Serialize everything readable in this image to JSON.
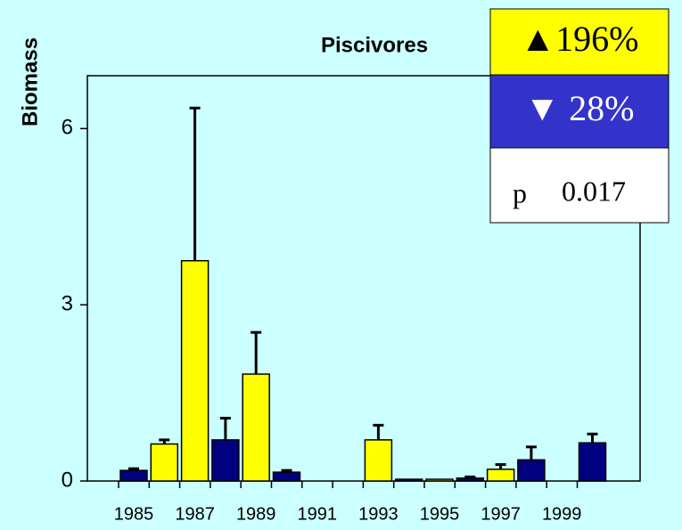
{
  "chart_data": {
    "type": "bar",
    "title": "Piscivores",
    "y_label": "Biomass",
    "categories": [
      "1985",
      null,
      "1987",
      null,
      "1989",
      null,
      "1991",
      null,
      "1993",
      null,
      "1995",
      null,
      "1997",
      null,
      "1999",
      null
    ],
    "values": [
      0.18,
      0.63,
      3.75,
      0.7,
      1.82,
      0.15,
      0,
      0,
      0.7,
      0.03,
      0.03,
      0.05,
      0.2,
      0.36,
      0,
      0.65
    ],
    "errors": [
      0.03,
      0.07,
      2.6,
      0.37,
      0.71,
      0.03,
      null,
      null,
      0.25,
      null,
      null,
      0.02,
      0.08,
      0.22,
      null,
      0.15
    ],
    "colors": [
      "#000080",
      "#ffff00",
      "#ffff00",
      "#000080",
      "#ffff00",
      "#000080",
      "#ffff00",
      "#000080",
      "#ffff00",
      "#000080",
      "#ffff00",
      "#000080",
      "#ffff00",
      "#000080",
      "#ffff00",
      "#000080"
    ],
    "ylim": [
      0,
      6.9
    ],
    "yticks": [
      0,
      3,
      6
    ],
    "annotations": {
      "increase": "▲196%",
      "decrease": "▼ 28%",
      "p_label": "p",
      "p_value": "0.017"
    }
  }
}
